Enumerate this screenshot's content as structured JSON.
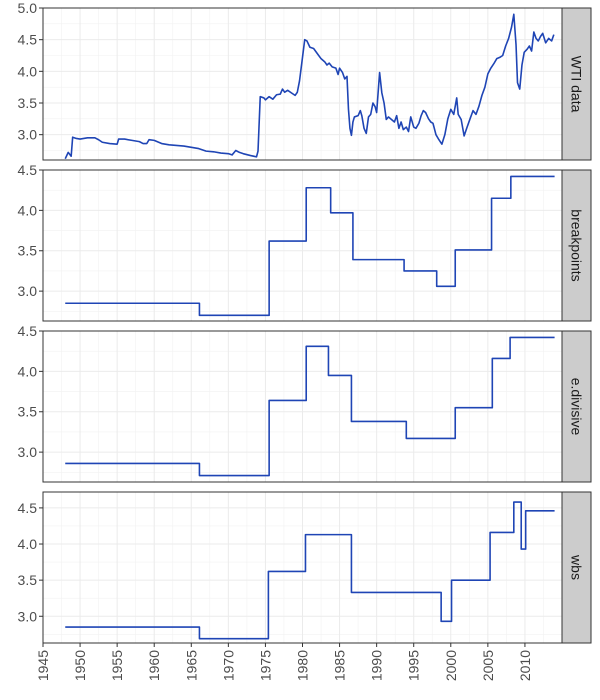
{
  "chart_data": {
    "type": "line",
    "xlim": [
      1945,
      2015
    ],
    "x_ticks": [
      1945,
      1950,
      1955,
      1960,
      1965,
      1970,
      1975,
      1980,
      1985,
      1990,
      1995,
      2000,
      2005,
      2010
    ],
    "x_tick_labels": [
      "1945",
      "1950",
      "1955",
      "1960",
      "1965",
      "1970",
      "1975",
      "1980",
      "1985",
      "1990",
      "1995",
      "2000",
      "2005",
      "2010"
    ],
    "line_color": "#1f45b5",
    "strip_fill": "#cccccc",
    "grid": true,
    "panels": [
      {
        "strip": "WTI data",
        "ylim": [
          2.6,
          5.0
        ],
        "y_ticks": [
          3.0,
          3.5,
          4.0,
          4.5,
          5.0
        ],
        "y_tick_labels": [
          "3.0",
          "3.5",
          "4.0",
          "4.5",
          "5.0"
        ],
        "points": [
          [
            1948.0,
            2.62
          ],
          [
            1948.4,
            2.72
          ],
          [
            1948.8,
            2.66
          ],
          [
            1949.0,
            2.96
          ],
          [
            1949.5,
            2.94
          ],
          [
            1950.0,
            2.93
          ],
          [
            1951.0,
            2.95
          ],
          [
            1952.0,
            2.95
          ],
          [
            1952.5,
            2.92
          ],
          [
            1953.0,
            2.88
          ],
          [
            1954.0,
            2.86
          ],
          [
            1955.0,
            2.85
          ],
          [
            1955.2,
            2.93
          ],
          [
            1956.0,
            2.93
          ],
          [
            1957.0,
            2.91
          ],
          [
            1958.0,
            2.89
          ],
          [
            1958.5,
            2.86
          ],
          [
            1959.0,
            2.86
          ],
          [
            1959.3,
            2.92
          ],
          [
            1960.0,
            2.91
          ],
          [
            1961.0,
            2.86
          ],
          [
            1962.0,
            2.84
          ],
          [
            1963.0,
            2.83
          ],
          [
            1964.0,
            2.82
          ],
          [
            1965.0,
            2.8
          ],
          [
            1966.0,
            2.78
          ],
          [
            1967.0,
            2.74
          ],
          [
            1968.0,
            2.73
          ],
          [
            1969.0,
            2.71
          ],
          [
            1970.0,
            2.7
          ],
          [
            1970.5,
            2.68
          ],
          [
            1971.0,
            2.75
          ],
          [
            1971.5,
            2.72
          ],
          [
            1972.0,
            2.7
          ],
          [
            1973.0,
            2.67
          ],
          [
            1973.8,
            2.65
          ],
          [
            1974.0,
            2.74
          ],
          [
            1974.3,
            3.6
          ],
          [
            1974.8,
            3.58
          ],
          [
            1975.0,
            3.55
          ],
          [
            1975.5,
            3.6
          ],
          [
            1976.0,
            3.56
          ],
          [
            1976.5,
            3.63
          ],
          [
            1977.0,
            3.64
          ],
          [
            1977.3,
            3.72
          ],
          [
            1977.6,
            3.67
          ],
          [
            1978.0,
            3.7
          ],
          [
            1978.5,
            3.66
          ],
          [
            1979.0,
            3.62
          ],
          [
            1979.3,
            3.67
          ],
          [
            1979.6,
            3.85
          ],
          [
            1980.0,
            4.22
          ],
          [
            1980.3,
            4.5
          ],
          [
            1980.6,
            4.48
          ],
          [
            1981.0,
            4.38
          ],
          [
            1981.5,
            4.36
          ],
          [
            1982.0,
            4.28
          ],
          [
            1982.5,
            4.2
          ],
          [
            1983.0,
            4.15
          ],
          [
            1983.3,
            4.1
          ],
          [
            1983.6,
            4.13
          ],
          [
            1984.0,
            4.07
          ],
          [
            1984.5,
            4.05
          ],
          [
            1984.8,
            3.95
          ],
          [
            1985.0,
            4.05
          ],
          [
            1985.4,
            3.98
          ],
          [
            1985.7,
            3.88
          ],
          [
            1986.0,
            3.92
          ],
          [
            1986.2,
            3.4
          ],
          [
            1986.4,
            3.1
          ],
          [
            1986.6,
            2.99
          ],
          [
            1986.8,
            3.2
          ],
          [
            1987.0,
            3.28
          ],
          [
            1987.5,
            3.3
          ],
          [
            1987.8,
            3.38
          ],
          [
            1988.0,
            3.3
          ],
          [
            1988.3,
            3.1
          ],
          [
            1988.6,
            3.02
          ],
          [
            1988.9,
            3.28
          ],
          [
            1989.2,
            3.32
          ],
          [
            1989.5,
            3.5
          ],
          [
            1989.8,
            3.44
          ],
          [
            1990.0,
            3.35
          ],
          [
            1990.4,
            3.98
          ],
          [
            1990.7,
            3.66
          ],
          [
            1991.0,
            3.5
          ],
          [
            1991.3,
            3.24
          ],
          [
            1991.6,
            3.28
          ],
          [
            1992.0,
            3.24
          ],
          [
            1992.4,
            3.2
          ],
          [
            1992.7,
            3.3
          ],
          [
            1993.0,
            3.1
          ],
          [
            1993.3,
            3.2
          ],
          [
            1993.6,
            3.08
          ],
          [
            1994.0,
            3.12
          ],
          [
            1994.3,
            3.05
          ],
          [
            1994.6,
            3.28
          ],
          [
            1995.0,
            3.12
          ],
          [
            1995.3,
            3.1
          ],
          [
            1995.7,
            3.18
          ],
          [
            1996.0,
            3.3
          ],
          [
            1996.3,
            3.38
          ],
          [
            1996.6,
            3.35
          ],
          [
            1997.0,
            3.25
          ],
          [
            1997.3,
            3.2
          ],
          [
            1997.6,
            3.18
          ],
          [
            1998.0,
            3.0
          ],
          [
            1998.4,
            2.92
          ],
          [
            1998.8,
            2.85
          ],
          [
            1999.2,
            3.0
          ],
          [
            1999.6,
            3.25
          ],
          [
            2000.0,
            3.4
          ],
          [
            2000.4,
            3.32
          ],
          [
            2000.8,
            3.58
          ],
          [
            2001.0,
            3.32
          ],
          [
            2001.4,
            3.24
          ],
          [
            2001.8,
            2.98
          ],
          [
            2002.2,
            3.12
          ],
          [
            2002.6,
            3.25
          ],
          [
            2003.0,
            3.38
          ],
          [
            2003.4,
            3.32
          ],
          [
            2003.8,
            3.45
          ],
          [
            2004.2,
            3.62
          ],
          [
            2004.6,
            3.75
          ],
          [
            2005.0,
            3.96
          ],
          [
            2005.4,
            4.05
          ],
          [
            2005.8,
            4.12
          ],
          [
            2006.2,
            4.2
          ],
          [
            2006.6,
            4.22
          ],
          [
            2007.0,
            4.25
          ],
          [
            2007.4,
            4.4
          ],
          [
            2007.8,
            4.52
          ],
          [
            2008.2,
            4.7
          ],
          [
            2008.5,
            4.9
          ],
          [
            2008.8,
            4.42
          ],
          [
            2009.0,
            3.82
          ],
          [
            2009.3,
            3.72
          ],
          [
            2009.6,
            4.1
          ],
          [
            2009.9,
            4.3
          ],
          [
            2010.3,
            4.35
          ],
          [
            2010.6,
            4.4
          ],
          [
            2010.9,
            4.32
          ],
          [
            2011.2,
            4.62
          ],
          [
            2011.5,
            4.52
          ],
          [
            2011.8,
            4.48
          ],
          [
            2012.1,
            4.55
          ],
          [
            2012.4,
            4.6
          ],
          [
            2012.8,
            4.45
          ],
          [
            2013.2,
            4.52
          ],
          [
            2013.6,
            4.48
          ],
          [
            2013.9,
            4.58
          ]
        ]
      },
      {
        "strip": "breakpoints",
        "ylim": [
          2.63,
          4.5
        ],
        "y_ticks": [
          3.0,
          3.5,
          4.0,
          4.5
        ],
        "y_tick_labels": [
          "3.0",
          "3.5",
          "4.0",
          "4.5"
        ],
        "points": [
          [
            1948.0,
            2.85
          ],
          [
            1966.1,
            2.85
          ],
          [
            1966.1,
            2.7
          ],
          [
            1975.5,
            2.7
          ],
          [
            1975.5,
            3.62
          ],
          [
            1980.5,
            3.62
          ],
          [
            1980.5,
            4.28
          ],
          [
            1983.8,
            4.28
          ],
          [
            1983.8,
            3.97
          ],
          [
            1986.8,
            3.97
          ],
          [
            1986.8,
            3.39
          ],
          [
            1993.7,
            3.39
          ],
          [
            1993.7,
            3.25
          ],
          [
            1998.1,
            3.25
          ],
          [
            1998.1,
            3.06
          ],
          [
            2000.6,
            3.06
          ],
          [
            2000.6,
            3.51
          ],
          [
            2005.5,
            3.51
          ],
          [
            2005.5,
            4.15
          ],
          [
            2008.1,
            4.15
          ],
          [
            2008.1,
            4.42
          ],
          [
            2014.0,
            4.42
          ]
        ]
      },
      {
        "strip": "e.divisive",
        "ylim": [
          2.63,
          4.5
        ],
        "y_ticks": [
          3.0,
          3.5,
          4.0,
          4.5
        ],
        "y_tick_labels": [
          "3.0",
          "3.5",
          "4.0",
          "4.5"
        ],
        "points": [
          [
            1948.0,
            2.86
          ],
          [
            1966.1,
            2.86
          ],
          [
            1966.1,
            2.71
          ],
          [
            1975.5,
            2.71
          ],
          [
            1975.5,
            3.64
          ],
          [
            1980.5,
            3.64
          ],
          [
            1980.5,
            4.31
          ],
          [
            1983.5,
            4.31
          ],
          [
            1983.5,
            3.95
          ],
          [
            1986.6,
            3.95
          ],
          [
            1986.6,
            3.38
          ],
          [
            1994.0,
            3.38
          ],
          [
            1994.0,
            3.17
          ],
          [
            2000.6,
            3.17
          ],
          [
            2000.6,
            3.55
          ],
          [
            2005.6,
            3.55
          ],
          [
            2005.6,
            4.16
          ],
          [
            2008.0,
            4.16
          ],
          [
            2008.0,
            4.42
          ],
          [
            2014.0,
            4.42
          ]
        ]
      },
      {
        "strip": "wbs",
        "ylim": [
          2.63,
          4.72
        ],
        "y_ticks": [
          3.0,
          3.5,
          4.0,
          4.5
        ],
        "y_tick_labels": [
          "3.0",
          "3.5",
          "4.0",
          "4.5"
        ],
        "points": [
          [
            1948.0,
            2.85
          ],
          [
            1966.1,
            2.85
          ],
          [
            1966.1,
            2.69
          ],
          [
            1975.4,
            2.69
          ],
          [
            1975.4,
            3.62
          ],
          [
            1980.4,
            3.62
          ],
          [
            1980.4,
            4.13
          ],
          [
            1986.6,
            4.13
          ],
          [
            1986.6,
            3.33
          ],
          [
            1998.7,
            3.33
          ],
          [
            1998.7,
            2.93
          ],
          [
            2000.1,
            2.93
          ],
          [
            2000.1,
            3.5
          ],
          [
            2005.3,
            3.5
          ],
          [
            2005.3,
            4.16
          ],
          [
            2008.5,
            4.16
          ],
          [
            2008.5,
            4.58
          ],
          [
            2009.5,
            4.58
          ],
          [
            2009.5,
            3.93
          ],
          [
            2010.1,
            3.93
          ],
          [
            2010.1,
            4.46
          ],
          [
            2014.0,
            4.46
          ]
        ]
      }
    ]
  }
}
